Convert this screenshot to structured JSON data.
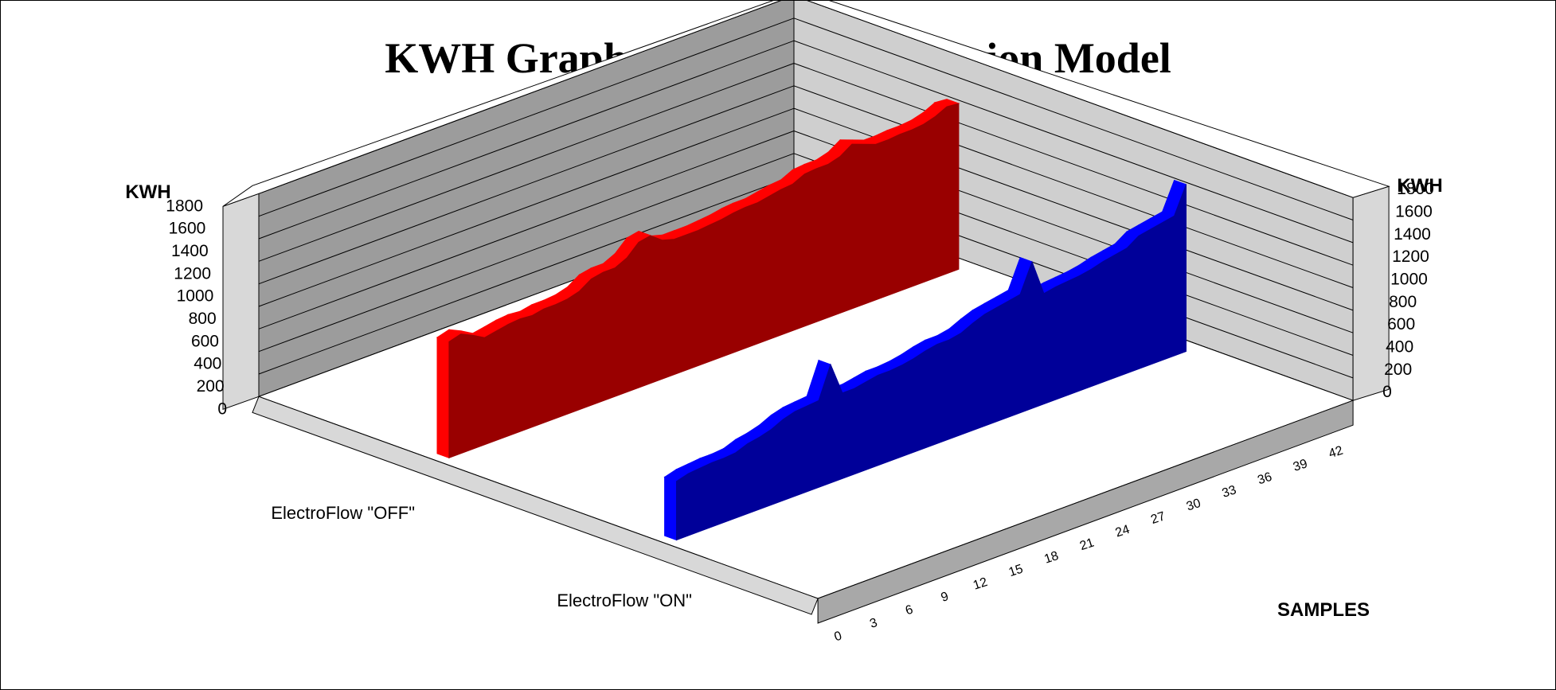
{
  "chart_data": {
    "type": "area",
    "style": "3d-ribbon",
    "title": "KWH Graphs Based On Regression Model",
    "ylabel_left": "KWH",
    "ylabel_right": "KWH",
    "xlabel": "SAMPLES",
    "ylim": [
      0,
      1800
    ],
    "yticks": [
      0,
      200,
      400,
      600,
      800,
      1000,
      1200,
      1400,
      1600,
      1800
    ],
    "x_tick_labels": [
      "0",
      "3",
      "6",
      "9",
      "12",
      "15",
      "18",
      "21",
      "24",
      "27",
      "30",
      "33",
      "36",
      "39",
      "42"
    ],
    "grid": true,
    "x": [
      0,
      1,
      2,
      3,
      4,
      5,
      6,
      7,
      8,
      9,
      10,
      11,
      12,
      13,
      14,
      15,
      16,
      17,
      18,
      19,
      20,
      21,
      22,
      23,
      24,
      25,
      26,
      27,
      28,
      29,
      30,
      31,
      32,
      33,
      34,
      35,
      36,
      37,
      38,
      39,
      40,
      41,
      42,
      43
    ],
    "series": [
      {
        "name": "ElectroFlow \"OFF\"",
        "color": "#990000",
        "edge_color": "#ff0000",
        "values": [
          1030,
          1060,
          1010,
          950,
          970,
          990,
          1000,
          990,
          1010,
          1010,
          1020,
          1050,
          1120,
          1140,
          1140,
          1190,
          1290,
          1310,
          1230,
          1200,
          1200,
          1200,
          1210,
          1220,
          1240,
          1250,
          1250,
          1270,
          1290,
          1300,
          1350,
          1360,
          1360,
          1390,
          1460,
          1420,
          1380,
          1380,
          1390,
          1390,
          1400,
          1430,
          1480,
          1470
        ]
      },
      {
        "name": "ElectroFlow \"ON\"",
        "color": "#000099",
        "edge_color": "#0000ff",
        "values": [
          520,
          550,
          560,
          570,
          570,
          580,
          620,
          640,
          670,
          720,
          750,
          760,
          770,
          1050,
          760,
          760,
          780,
          800,
          800,
          810,
          830,
          860,
          880,
          880,
          900,
          950,
          990,
          1010,
          1030,
          1050,
          1300,
          980,
          1000,
          1010,
          1020,
          1040,
          1070,
          1090,
          1110,
          1180,
          1200,
          1220,
          1240,
          1480
        ]
      }
    ]
  }
}
